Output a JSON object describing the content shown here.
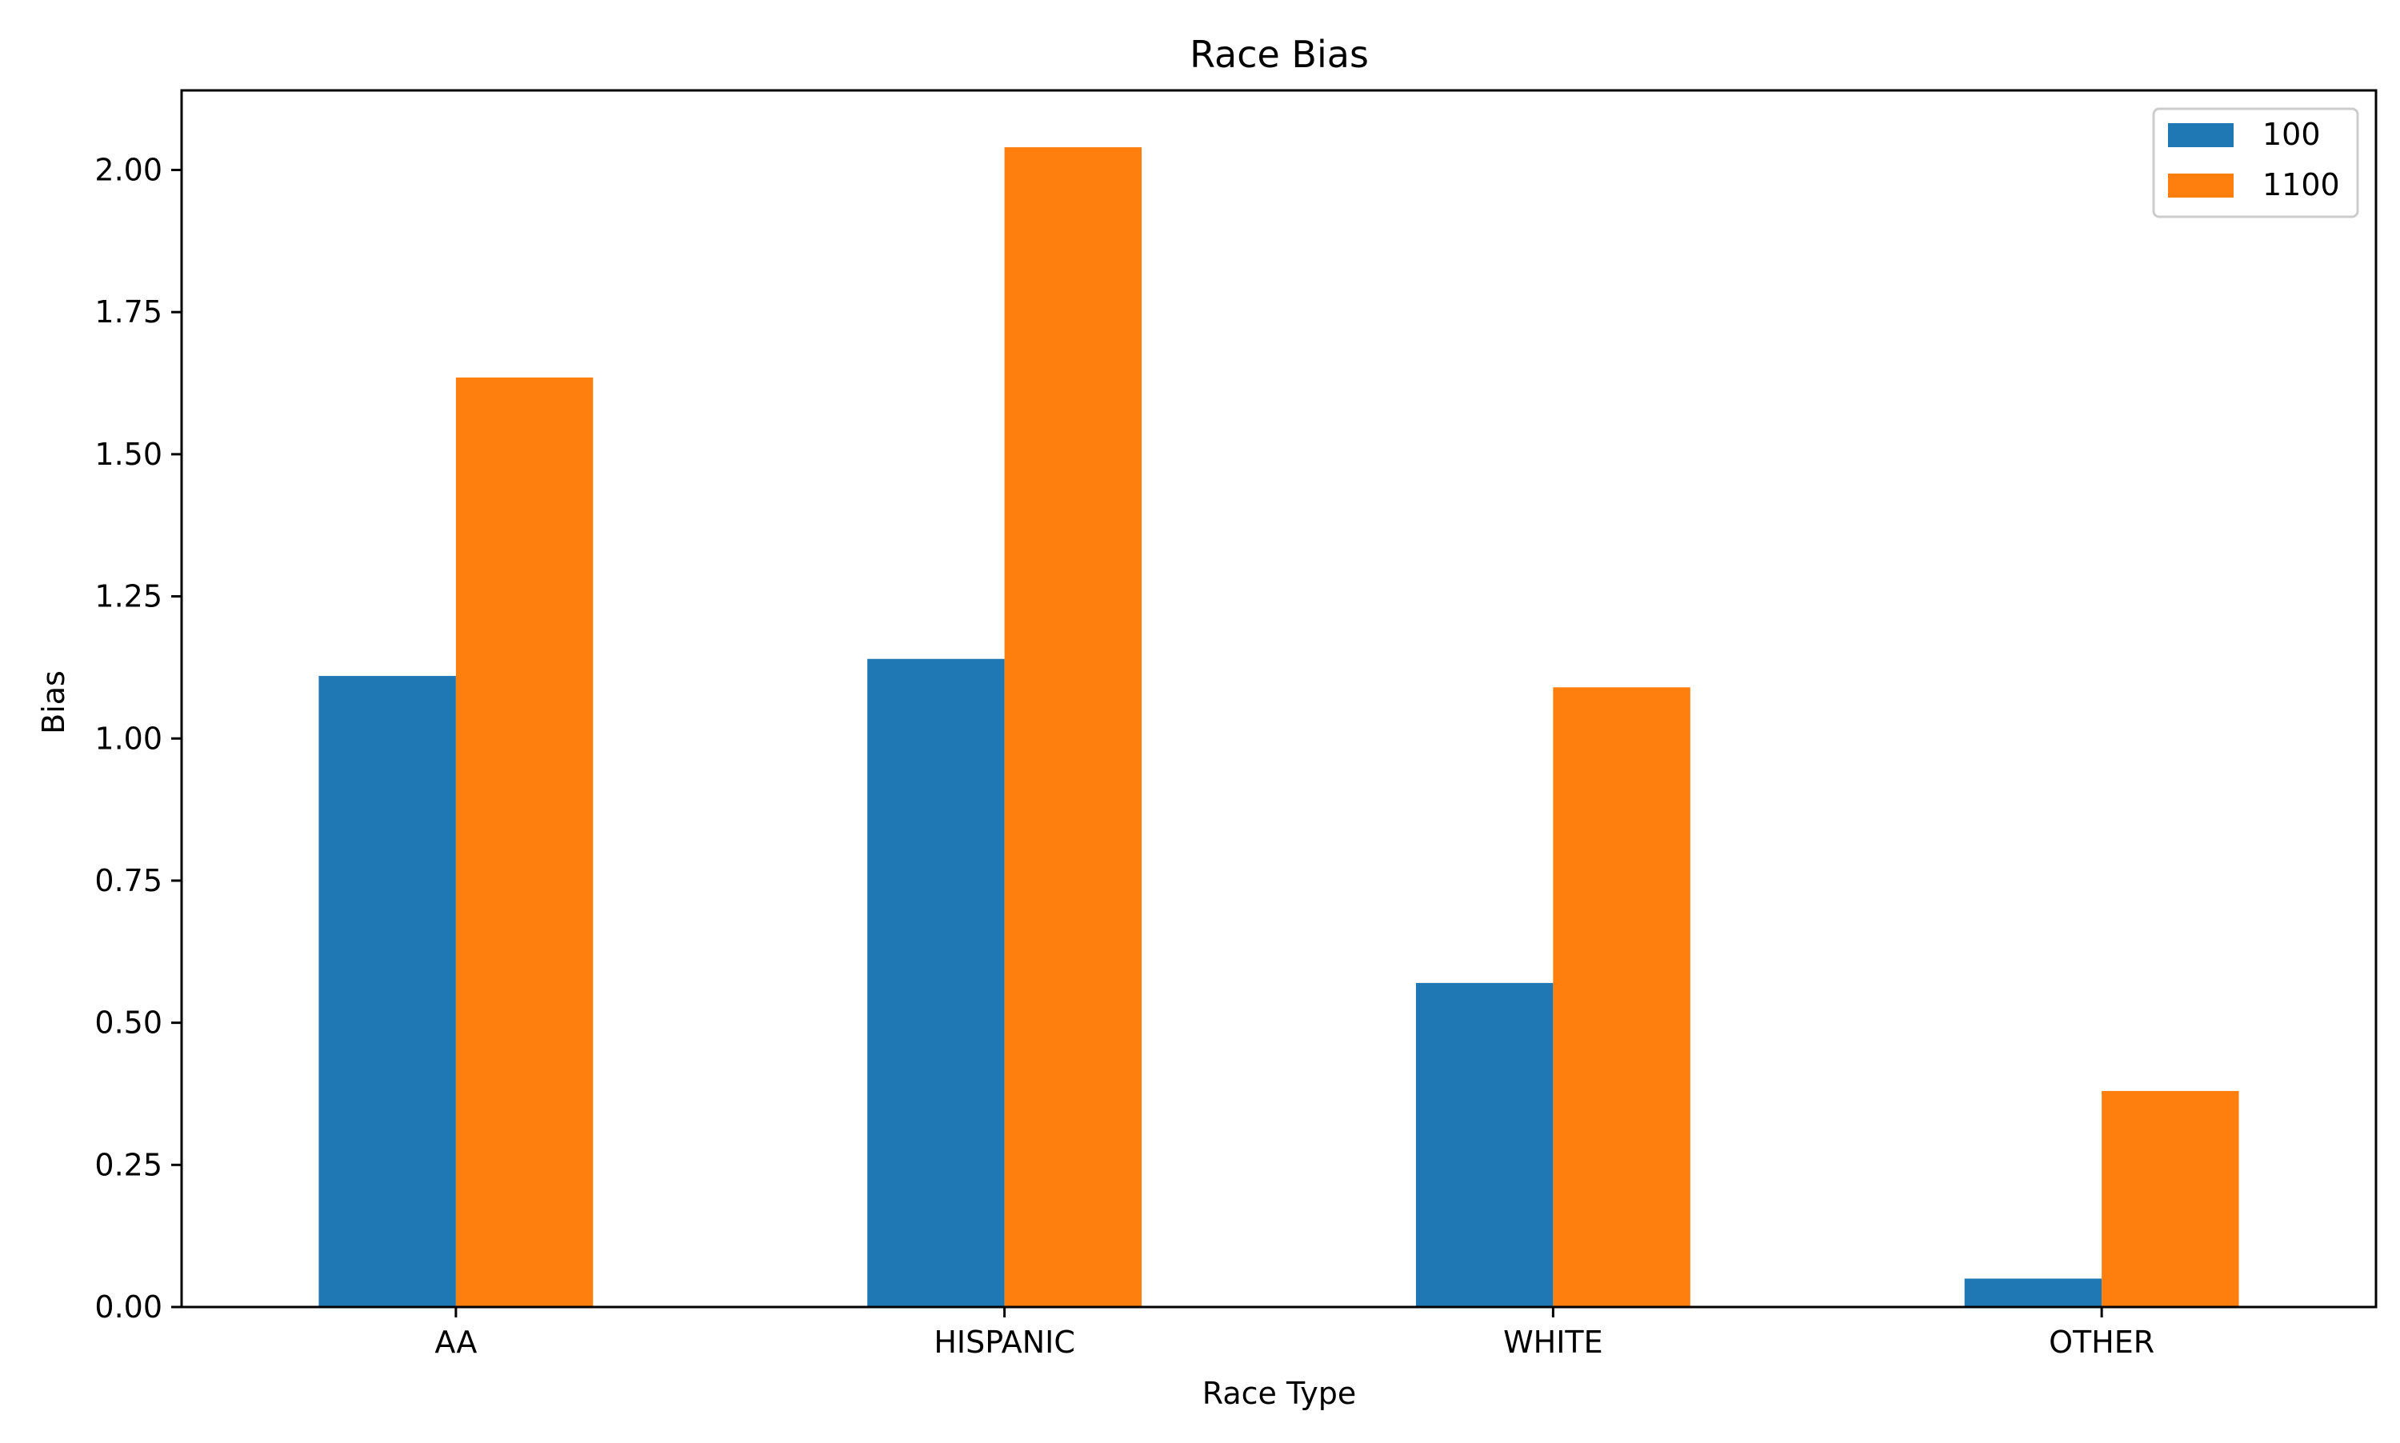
{
  "chart_data": {
    "type": "bar",
    "title": "Race Bias",
    "xlabel": "Race Type",
    "ylabel": "Bias",
    "categories": [
      "AA",
      "HISPANIC",
      "WHITE",
      "OTHER"
    ],
    "series": [
      {
        "name": "100",
        "color": "#1f77b4",
        "values": [
          1.11,
          1.14,
          0.57,
          0.05
        ]
      },
      {
        "name": "1100",
        "color": "#ff7f0e",
        "values": [
          1.635,
          2.04,
          1.09,
          0.38
        ]
      }
    ],
    "ylim": [
      0,
      2.14
    ],
    "yticks": [
      "0.00",
      "0.25",
      "0.50",
      "0.75",
      "1.00",
      "1.25",
      "1.50",
      "1.75",
      "2.00"
    ],
    "grid": false,
    "legend": "top-right"
  }
}
